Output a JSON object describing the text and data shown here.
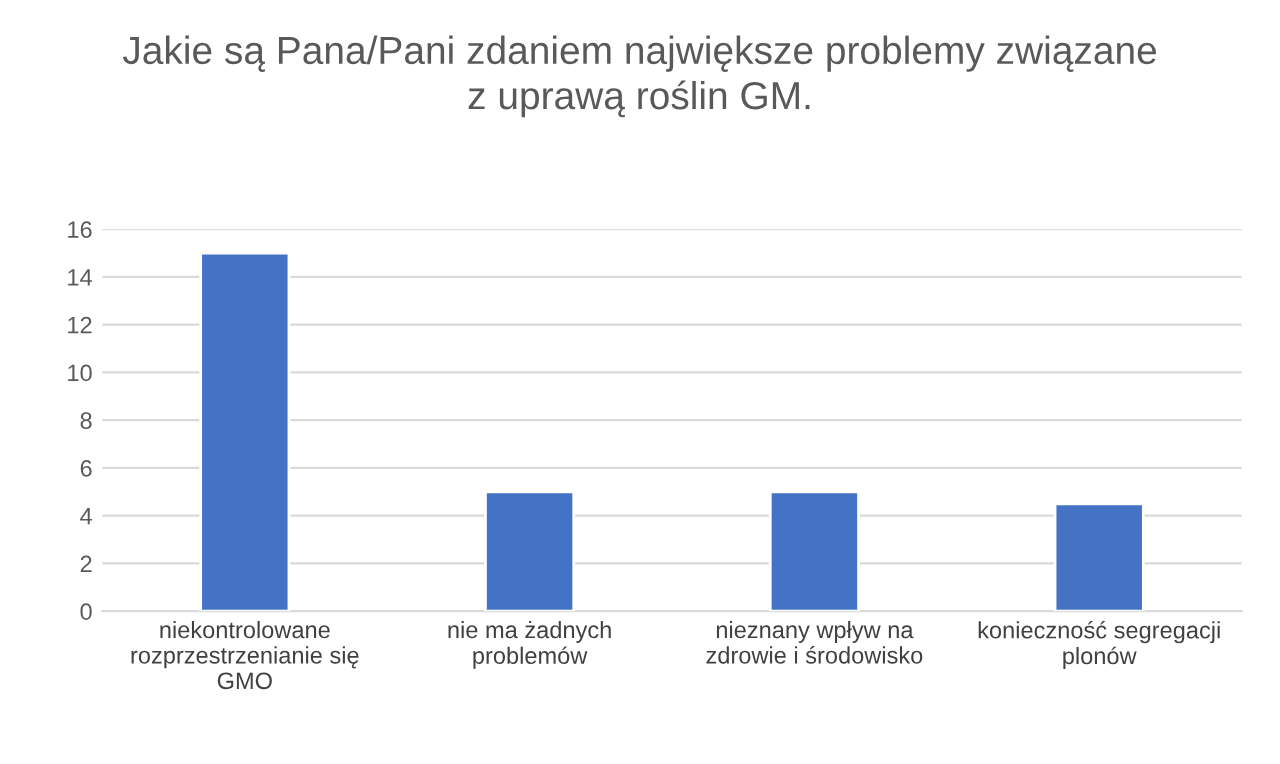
{
  "chart_data": {
    "type": "bar",
    "title": "Jakie są Pana/Pani zdaniem największe problemy związane\nz uprawą roślin GM.",
    "categories": [
      "niekontrolowane\nrozprzestrzenianie się\nGMO",
      "nie ma żadnych\nproblemów",
      "nieznany wpływ na\nzdrowie i środowisko",
      "konieczność segregacji\nplonów"
    ],
    "values": [
      15,
      5,
      5,
      4.5
    ],
    "color": "#4472c4",
    "ylim": [
      0,
      16
    ],
    "yticks": [
      0,
      2,
      4,
      6,
      8,
      10,
      12,
      14,
      16
    ],
    "grid": "y"
  }
}
